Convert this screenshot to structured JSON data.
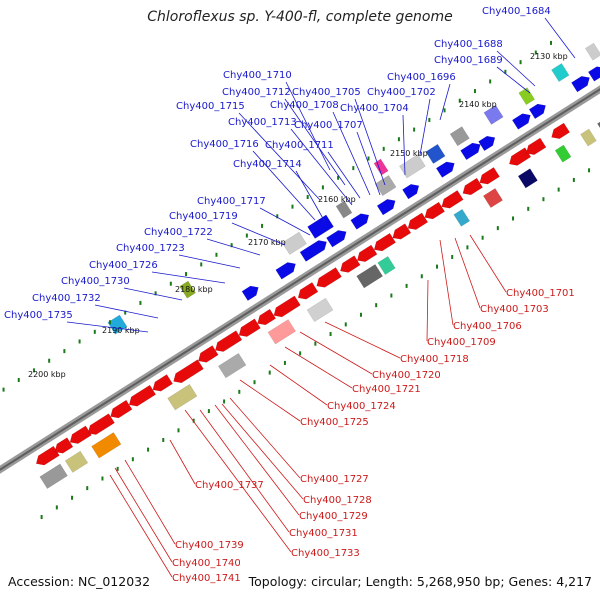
{
  "title": "Chloroflexus sp. Y-400-fl, complete genome",
  "footer": {
    "accession": "Accession: NC_012032",
    "summary": "Topology: circular; Length: 5,268,950 bp; Genes: 4,217"
  },
  "colors": {
    "backbone": "#8c8c8c",
    "forward_label": "#1a1acc",
    "reverse_label": "#cc1a1a",
    "tick": "#1a7a1a",
    "gene_forward": "#0a0ae6",
    "gene_reverse": "#e60a0a"
  },
  "scale_labels": [
    "2130 kbp",
    "2140 kbp",
    "2150 kbp",
    "2160 kbp",
    "2170 kbp",
    "2180 kbp",
    "2190 kbp",
    "2200 kbp"
  ],
  "forward_labels": [
    "Chy400_1684",
    "Chy400_1688",
    "Chy400_1689",
    "Chy400_1696",
    "Chy400_1710",
    "Chy400_1705",
    "Chy400_1702",
    "Chy400_1712",
    "Chy400_1704",
    "Chy400_1708",
    "Chy400_1715",
    "Chy400_1713",
    "Chy400_1707",
    "Chy400_1711",
    "Chy400_1716",
    "Chy400_1714",
    "Chy400_1717",
    "Chy400_1719",
    "Chy400_1722",
    "Chy400_1723",
    "Chy400_1726",
    "Chy400_1730",
    "Chy400_1732",
    "Chy400_1735"
  ],
  "reverse_labels": [
    "Chy400_1701",
    "Chy400_1703",
    "Chy400_1706",
    "Chy400_1709",
    "Chy400_1718",
    "Chy400_1720",
    "Chy400_1721",
    "Chy400_1724",
    "Chy400_1725",
    "Chy400_1727",
    "Chy400_1728",
    "Chy400_1729",
    "Chy400_1731",
    "Chy400_1733",
    "Chy400_1737",
    "Chy400_1739",
    "Chy400_1740",
    "Chy400_1741"
  ]
}
